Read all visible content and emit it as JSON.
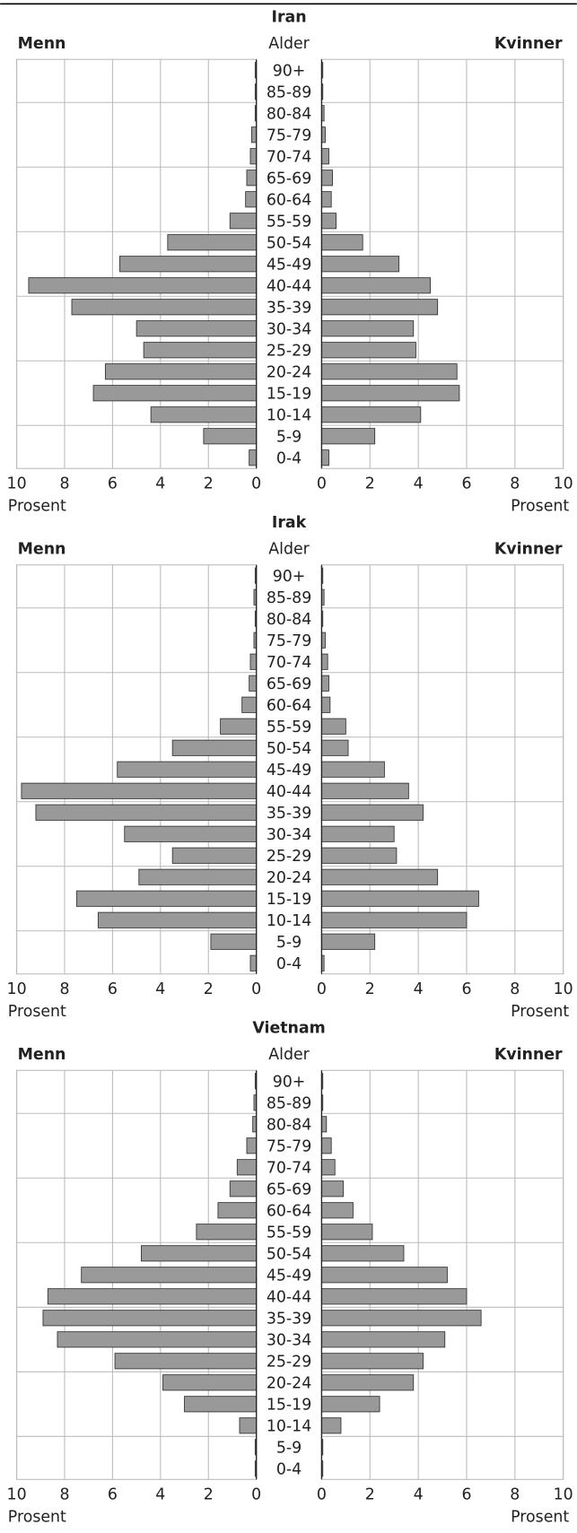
{
  "chart_data": [
    {
      "type": "pyramid",
      "title": "Iran",
      "ylabel": "Alder",
      "xlabel": "Prosent",
      "categories": [
        "90+",
        "85-89",
        "80-84",
        "75-79",
        "70-74",
        "65-69",
        "60-64",
        "55-59",
        "50-54",
        "45-49",
        "40-44",
        "35-39",
        "30-34",
        "25-29",
        "20-24",
        "15-19",
        "10-14",
        "5-9",
        "0-4"
      ],
      "series": [
        {
          "name": "Menn",
          "color": "#999999",
          "values": [
            0.05,
            0.05,
            0.05,
            0.2,
            0.25,
            0.4,
            0.45,
            1.1,
            3.7,
            5.7,
            9.5,
            7.7,
            5.0,
            4.7,
            6.3,
            6.8,
            4.4,
            2.2,
            0.3
          ]
        },
        {
          "name": "Kvinner",
          "color": "#999999",
          "values": [
            0.05,
            0.05,
            0.1,
            0.15,
            0.3,
            0.45,
            0.4,
            0.6,
            1.7,
            3.2,
            4.5,
            4.8,
            3.8,
            3.9,
            5.6,
            5.7,
            4.1,
            2.2,
            0.3
          ]
        }
      ],
      "xlim": [
        0,
        10
      ],
      "xticks": [
        0,
        2,
        4,
        6,
        8,
        10
      ],
      "grid": true
    },
    {
      "type": "pyramid",
      "title": "Irak",
      "ylabel": "Alder",
      "xlabel": "Prosent",
      "categories": [
        "90+",
        "85-89",
        "80-84",
        "75-79",
        "70-74",
        "65-69",
        "60-64",
        "55-59",
        "50-54",
        "45-49",
        "40-44",
        "35-39",
        "30-34",
        "25-29",
        "20-24",
        "15-19",
        "10-14",
        "5-9",
        "0-4"
      ],
      "series": [
        {
          "name": "Menn",
          "color": "#999999",
          "values": [
            0.05,
            0.1,
            0.05,
            0.1,
            0.25,
            0.3,
            0.6,
            1.5,
            3.5,
            5.8,
            9.8,
            9.2,
            5.5,
            3.5,
            4.9,
            7.5,
            6.6,
            1.9,
            0.25
          ]
        },
        {
          "name": "Kvinner",
          "color": "#999999",
          "values": [
            0.05,
            0.1,
            0.05,
            0.15,
            0.25,
            0.3,
            0.35,
            1.0,
            1.1,
            2.6,
            3.6,
            4.2,
            3.0,
            3.1,
            4.8,
            6.5,
            6.0,
            2.2,
            0.1
          ]
        }
      ],
      "xlim": [
        0,
        10
      ],
      "xticks": [
        0,
        2,
        4,
        6,
        8,
        10
      ],
      "grid": true
    },
    {
      "type": "pyramid",
      "title": "Vietnam",
      "ylabel": "Alder",
      "xlabel": "Prosent",
      "categories": [
        "90+",
        "85-89",
        "80-84",
        "75-79",
        "70-74",
        "65-69",
        "60-64",
        "55-59",
        "50-54",
        "45-49",
        "40-44",
        "35-39",
        "30-34",
        "25-29",
        "20-24",
        "15-19",
        "10-14",
        "5-9",
        "0-4"
      ],
      "series": [
        {
          "name": "Menn",
          "color": "#999999",
          "values": [
            0.05,
            0.1,
            0.15,
            0.4,
            0.8,
            1.1,
            1.6,
            2.5,
            4.8,
            7.3,
            8.7,
            8.9,
            8.3,
            5.9,
            3.9,
            3.0,
            0.7,
            0.05,
            0.05
          ]
        },
        {
          "name": "Kvinner",
          "color": "#999999",
          "values": [
            0.05,
            0.05,
            0.2,
            0.4,
            0.55,
            0.9,
            1.3,
            2.1,
            3.4,
            5.2,
            6.0,
            6.6,
            5.1,
            4.2,
            3.8,
            2.4,
            0.8,
            0.05,
            0.05
          ]
        }
      ],
      "xlim": [
        0,
        10
      ],
      "xticks": [
        0,
        2,
        4,
        6,
        8,
        10
      ],
      "grid": true
    }
  ]
}
